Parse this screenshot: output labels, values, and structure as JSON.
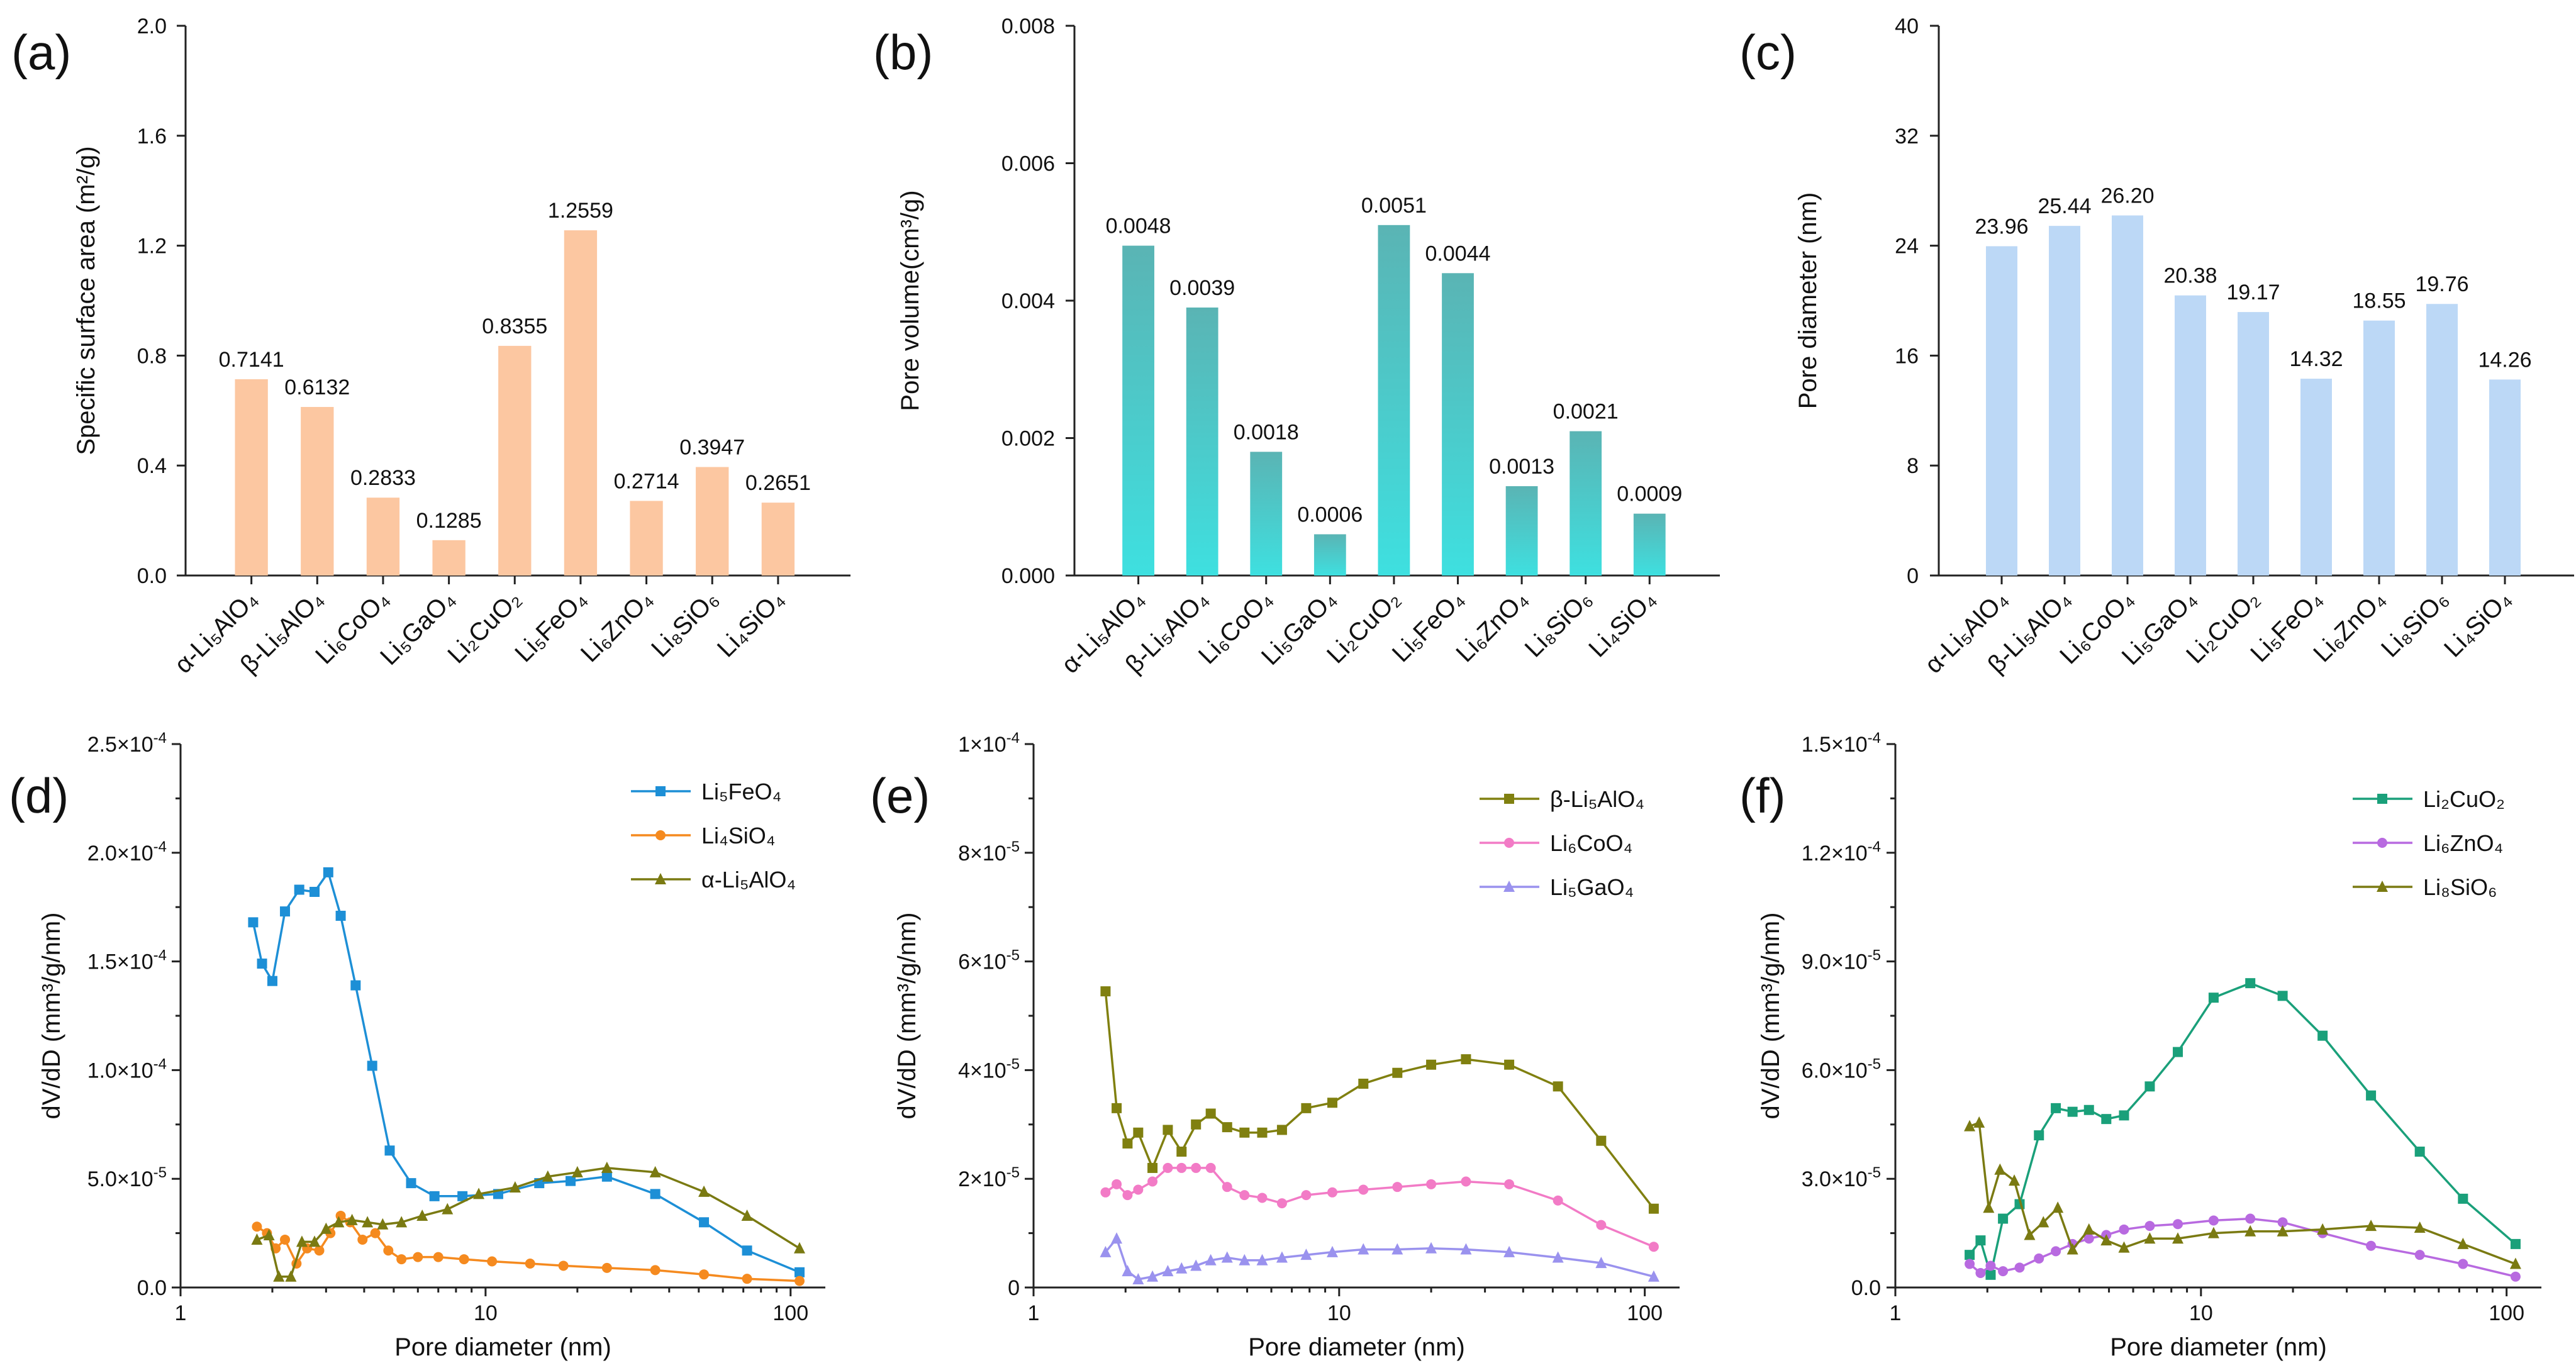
{
  "chart_data": [
    {
      "panel": "(a)",
      "type": "bar",
      "ylabel": "Specific surface area (m²/g)",
      "ylim": [
        0,
        2.0
      ],
      "yticks": [
        "0.0",
        "0.4",
        "0.8",
        "1.2",
        "1.6",
        "2.0"
      ],
      "color": "#fcc7a1",
      "categories": [
        "α-Li₅AlO₄",
        "β-Li₅AlO₄",
        "Li₆CoO₄",
        "Li₅GaO₄",
        "Li₂CuO₂",
        "Li₅FeO₄",
        "Li₆ZnO₄",
        "Li₈SiO₆",
        "Li₄SiO₄"
      ],
      "values": [
        0.7141,
        0.6132,
        0.2833,
        0.1285,
        0.8355,
        1.2559,
        0.2714,
        0.3947,
        0.2651
      ],
      "labels": [
        "0.7141",
        "0.6132",
        "0.2833",
        "0.1285",
        "0.8355",
        "1.2559",
        "0.2714",
        "0.3947",
        "0.2651"
      ]
    },
    {
      "panel": "(b)",
      "type": "bar",
      "ylabel": "Pore volume(cm³/g)",
      "ylim": [
        0,
        0.008
      ],
      "yticks": [
        "0.000",
        "0.002",
        "0.004",
        "0.006",
        "0.008"
      ],
      "gradient": [
        "#5ab4b4",
        "#3ee0e0"
      ],
      "categories": [
        "α-Li₅AlO₄",
        "β-Li₅AlO₄",
        "Li₆CoO₄",
        "Li₅GaO₄",
        "Li₂CuO₂",
        "Li₅FeO₄",
        "Li₆ZnO₄",
        "Li₈SiO₆",
        "Li₄SiO₄"
      ],
      "values": [
        0.0048,
        0.0039,
        0.0018,
        0.0006,
        0.0051,
        0.0044,
        0.0013,
        0.0021,
        0.0009
      ],
      "labels": [
        "0.0048",
        "0.0039",
        "0.0018",
        "0.0006",
        "0.0051",
        "0.0044",
        "0.0013",
        "0.0021",
        "0.0009"
      ]
    },
    {
      "panel": "(c)",
      "type": "bar",
      "ylabel": "Pore diameter (nm)",
      "ylim": [
        0,
        40
      ],
      "yticks": [
        "0",
        "8",
        "16",
        "24",
        "32",
        "40"
      ],
      "color": "#bcd8f6",
      "categories": [
        "α-Li₅AlO₄",
        "β-Li₅AlO₄",
        "Li₆CoO₄",
        "Li₅GaO₄",
        "Li₂CuO₂",
        "Li₅FeO₄",
        "Li₆ZnO₄",
        "Li₈SiO₆",
        "Li₄SiO₄"
      ],
      "values": [
        23.96,
        25.44,
        26.2,
        20.38,
        19.17,
        14.32,
        18.55,
        19.76,
        14.26
      ],
      "labels": [
        "23.96",
        "25.44",
        "26.20",
        "20.38",
        "19.17",
        "14.32",
        "18.55",
        "19.76",
        "14.26"
      ]
    },
    {
      "panel": "(d)",
      "type": "line",
      "xlabel": "Pore diameter (nm)",
      "ylabel": "dV/dD (mm³/g/nm)",
      "xscale": "log",
      "xlim": [
        1,
        130
      ],
      "xticks": [
        {
          "v": 1,
          "t": "1"
        },
        {
          "v": 10,
          "t": "10"
        },
        {
          "v": 100,
          "t": "100"
        }
      ],
      "ylim": [
        0,
        0.00025
      ],
      "yticks": [
        {
          "m": "0.0",
          "e": ""
        },
        {
          "m": "5.0×10",
          "e": "-5"
        },
        {
          "m": "1.0×10",
          "e": "-4"
        },
        {
          "m": "1.5×10",
          "e": "-4"
        },
        {
          "m": "2.0×10",
          "e": "-4"
        },
        {
          "m": "2.5×10",
          "e": "-4"
        }
      ],
      "legend_position": "top-right",
      "series": [
        {
          "name": "Li₅FeO₄",
          "color": "#1d8fd6",
          "marker": "square",
          "x": [
            1.73,
            1.85,
            2.0,
            2.2,
            2.45,
            2.75,
            3.05,
            3.35,
            3.75,
            4.25,
            4.85,
            5.7,
            6.8,
            8.4,
            11.0,
            15.0,
            19.0,
            25.0,
            36.0,
            52.0,
            72.0,
            107.0
          ],
          "y": [
            0.000168,
            0.000149,
            0.000141,
            0.000173,
            0.000183,
            0.000182,
            0.000191,
            0.000171,
            0.000139,
            0.000102,
            6.3e-05,
            4.8e-05,
            4.2e-05,
            4.2e-05,
            4.3e-05,
            4.8e-05,
            4.9e-05,
            5.1e-05,
            4.3e-05,
            3e-05,
            1.7e-05,
            7e-06
          ]
        },
        {
          "name": "Li₄SiO₄",
          "color": "#f58a1f",
          "marker": "circle",
          "x": [
            1.78,
            1.92,
            2.05,
            2.2,
            2.4,
            2.6,
            2.85,
            3.1,
            3.35,
            3.6,
            3.95,
            4.35,
            4.8,
            5.3,
            6.0,
            7.0,
            8.5,
            10.5,
            14.0,
            18.0,
            25.0,
            36.0,
            52.0,
            72.0,
            107.0
          ],
          "y": [
            2.8e-05,
            2.5e-05,
            1.8e-05,
            2.2e-05,
            1.1e-05,
            1.8e-05,
            1.7e-05,
            2.5e-05,
            3.3e-05,
            3e-05,
            2.2e-05,
            2.5e-05,
            1.7e-05,
            1.3e-05,
            1.4e-05,
            1.4e-05,
            1.3e-05,
            1.2e-05,
            1.1e-05,
            1e-05,
            9e-06,
            8e-06,
            6e-06,
            4e-06,
            3e-06
          ]
        },
        {
          "name": "α-Li₅AlO₄",
          "color": "#7a7a12",
          "marker": "triangle",
          "x": [
            1.78,
            1.95,
            2.1,
            2.3,
            2.5,
            2.75,
            3.0,
            3.3,
            3.65,
            4.1,
            4.6,
            5.3,
            6.2,
            7.5,
            9.5,
            12.5,
            16.0,
            20.0,
            25.0,
            36.0,
            52.0,
            72.0,
            107.0
          ],
          "y": [
            2.2e-05,
            2.4e-05,
            5e-06,
            5e-06,
            2.1e-05,
            2.1e-05,
            2.7e-05,
            3e-05,
            3.1e-05,
            3e-05,
            2.9e-05,
            3e-05,
            3.3e-05,
            3.6e-05,
            4.3e-05,
            4.6e-05,
            5.1e-05,
            5.3e-05,
            5.5e-05,
            5.3e-05,
            4.4e-05,
            3.3e-05,
            1.8e-05
          ]
        }
      ]
    },
    {
      "panel": "(e)",
      "type": "line",
      "xlabel": "Pore diameter (nm)",
      "ylabel": "dV/dD (mm³/g/nm)",
      "xscale": "log",
      "xlim": [
        1,
        130
      ],
      "xticks": [
        {
          "v": 1,
          "t": "1"
        },
        {
          "v": 10,
          "t": "10"
        },
        {
          "v": 100,
          "t": "100"
        }
      ],
      "ylim": [
        0,
        0.0001
      ],
      "yticks": [
        {
          "m": "0",
          "e": ""
        },
        {
          "m": "2×10",
          "e": "-5"
        },
        {
          "m": "4×10",
          "e": "-5"
        },
        {
          "m": "6×10",
          "e": "-5"
        },
        {
          "m": "8×10",
          "e": "-5"
        },
        {
          "m": "1×10",
          "e": "-4"
        }
      ],
      "legend_position": "top-right",
      "series": [
        {
          "name": "β-Li₅AlO₄",
          "color": "#808010",
          "marker": "square",
          "x": [
            1.72,
            1.87,
            2.03,
            2.2,
            2.45,
            2.75,
            3.05,
            3.4,
            3.8,
            4.3,
            4.9,
            5.6,
            6.5,
            7.8,
            9.5,
            12.0,
            15.5,
            20.0,
            26.0,
            36.0,
            52.0,
            72.0,
            107.0
          ],
          "y": [
            5.45e-05,
            3.3e-05,
            2.65e-05,
            2.85e-05,
            2.2e-05,
            2.9e-05,
            2.5e-05,
            3e-05,
            3.2e-05,
            2.95e-05,
            2.85e-05,
            2.85e-05,
            2.9e-05,
            3.3e-05,
            3.4e-05,
            3.75e-05,
            3.95e-05,
            4.1e-05,
            4.2e-05,
            4.1e-05,
            3.7e-05,
            2.7e-05,
            1.45e-05
          ]
        },
        {
          "name": "Li₆CoO₄",
          "color": "#f27bc6",
          "marker": "circle",
          "x": [
            1.72,
            1.87,
            2.03,
            2.2,
            2.45,
            2.75,
            3.05,
            3.4,
            3.8,
            4.3,
            4.9,
            5.6,
            6.5,
            7.8,
            9.5,
            12.0,
            15.5,
            20.0,
            26.0,
            36.0,
            52.0,
            72.0,
            107.0
          ],
          "y": [
            1.75e-05,
            1.9e-05,
            1.7e-05,
            1.8e-05,
            1.95e-05,
            2.2e-05,
            2.2e-05,
            2.2e-05,
            2.2e-05,
            1.85e-05,
            1.7e-05,
            1.65e-05,
            1.55e-05,
            1.7e-05,
            1.75e-05,
            1.8e-05,
            1.85e-05,
            1.9e-05,
            1.95e-05,
            1.9e-05,
            1.6e-05,
            1.15e-05,
            7.5e-06
          ]
        },
        {
          "name": "Li₅GaO₄",
          "color": "#9a92ee",
          "marker": "triangle",
          "x": [
            1.72,
            1.87,
            2.03,
            2.2,
            2.45,
            2.75,
            3.05,
            3.4,
            3.8,
            4.3,
            4.9,
            5.6,
            6.5,
            7.8,
            9.5,
            12.0,
            15.5,
            20.0,
            26.0,
            36.0,
            52.0,
            72.0,
            107.0
          ],
          "y": [
            6.5e-06,
            9e-06,
            3e-06,
            1.5e-06,
            2e-06,
            3e-06,
            3.5e-06,
            4e-06,
            5e-06,
            5.5e-06,
            5e-06,
            5e-06,
            5.5e-06,
            6e-06,
            6.5e-06,
            7e-06,
            7e-06,
            7.2e-06,
            7e-06,
            6.5e-06,
            5.5e-06,
            4.5e-06,
            2e-06
          ]
        }
      ]
    },
    {
      "panel": "(f)",
      "type": "line",
      "xlabel": "Pore diameter (nm)",
      "ylabel": "dV/dD (mm³/g/nm)",
      "xscale": "log",
      "xlim": [
        1,
        130
      ],
      "xticks": [
        {
          "v": 1,
          "t": "1"
        },
        {
          "v": 10,
          "t": "10"
        },
        {
          "v": 100,
          "t": "100"
        }
      ],
      "ylim": [
        0,
        0.00015
      ],
      "yticks": [
        {
          "m": "0.0",
          "e": ""
        },
        {
          "m": "3.0×10",
          "e": "-5"
        },
        {
          "m": "6.0×10",
          "e": "-5"
        },
        {
          "m": "9.0×10",
          "e": "-5"
        },
        {
          "m": "1.2×10",
          "e": "-4"
        },
        {
          "m": "1.5×10",
          "e": "-4"
        }
      ],
      "legend_position": "top-right",
      "series": [
        {
          "name": "Li₂CuO₂",
          "color": "#1aa07a",
          "marker": "square",
          "x": [
            1.75,
            1.9,
            2.05,
            2.25,
            2.55,
            2.95,
            3.35,
            3.8,
            4.3,
            4.9,
            5.6,
            6.8,
            8.4,
            11.0,
            14.5,
            18.5,
            25.0,
            36.0,
            52.0,
            72.0,
            107.0
          ],
          "y": [
            9e-06,
            1.3e-05,
            3.5e-06,
            1.9e-05,
            2.3e-05,
            4.2e-05,
            4.95e-05,
            4.85e-05,
            4.9e-05,
            4.65e-05,
            4.75e-05,
            5.55e-05,
            6.5e-05,
            8e-05,
            8.4e-05,
            8.05e-05,
            6.95e-05,
            5.3e-05,
            3.75e-05,
            2.45e-05,
            1.2e-05
          ]
        },
        {
          "name": "Li₆ZnO₄",
          "color": "#b86ae0",
          "marker": "circle",
          "x": [
            1.75,
            1.9,
            2.05,
            2.25,
            2.55,
            2.95,
            3.35,
            3.8,
            4.3,
            4.9,
            5.6,
            6.8,
            8.4,
            11.0,
            14.5,
            18.5,
            25.0,
            36.0,
            52.0,
            72.0,
            107.0
          ],
          "y": [
            6.5e-06,
            4e-06,
            6e-06,
            4.5e-06,
            5.5e-06,
            8e-06,
            1e-05,
            1.2e-05,
            1.35e-05,
            1.45e-05,
            1.6e-05,
            1.7e-05,
            1.75e-05,
            1.85e-05,
            1.9e-05,
            1.8e-05,
            1.5e-05,
            1.15e-05,
            9e-06,
            6.5e-06,
            3e-06
          ]
        },
        {
          "name": "Li₈SiO₆",
          "color": "#7a7a12",
          "marker": "triangle",
          "x": [
            1.75,
            1.88,
            2.02,
            2.2,
            2.45,
            2.75,
            3.05,
            3.4,
            3.8,
            4.3,
            4.9,
            5.6,
            6.8,
            8.4,
            11.0,
            14.5,
            18.5,
            25.0,
            36.0,
            52.0,
            72.0,
            107.0
          ],
          "y": [
            4.45e-05,
            4.55e-05,
            2.2e-05,
            3.25e-05,
            2.95e-05,
            1.45e-05,
            1.8e-05,
            2.2e-05,
            1.05e-05,
            1.6e-05,
            1.3e-05,
            1.1e-05,
            1.35e-05,
            1.35e-05,
            1.5e-05,
            1.55e-05,
            1.55e-05,
            1.6e-05,
            1.7e-05,
            1.65e-05,
            1.2e-05,
            6.5e-06
          ]
        }
      ]
    }
  ]
}
